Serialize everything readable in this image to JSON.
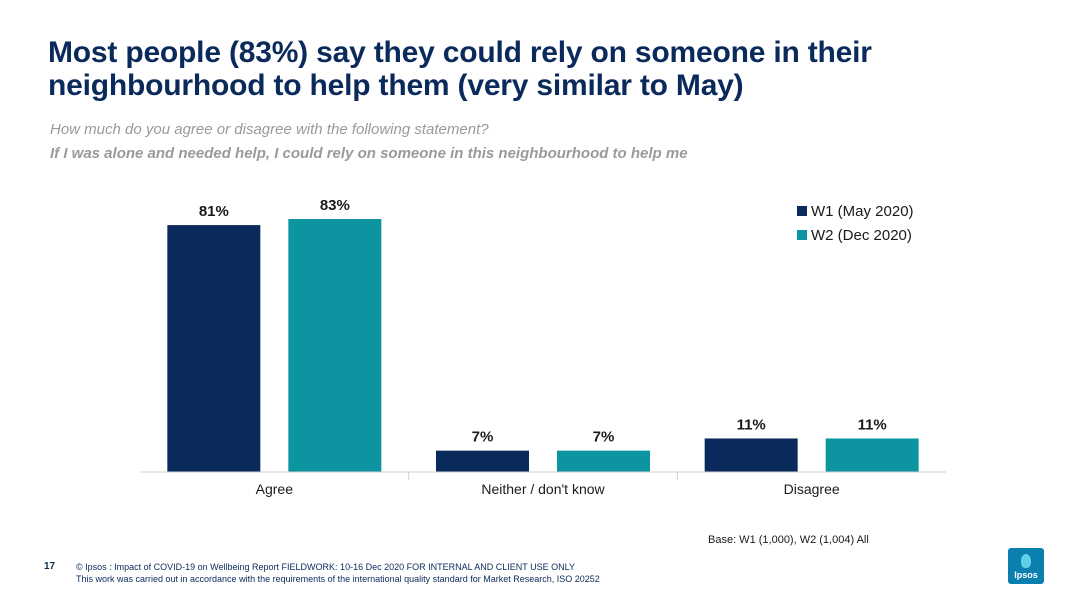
{
  "slide": {
    "title": "Most people (83%) say they could rely on someone in their neighbourhood to help them (very similar to May)",
    "question": "How much do you agree or disagree with the following statement?",
    "statement": "If I was alone and needed help, I could rely on someone in this neighbourhood to help me",
    "base": "Base: W1 (1,000), W2 (1,004) All",
    "page_number": "17",
    "footer_line1": "© Ipsos : Impact of COVID-19 on Wellbeing Report FIELDWORK: 10-16 Dec 2020 FOR INTERNAL AND CLIENT USE ONLY",
    "footer_line2": "This work was carried out in accordance with the requirements of the international quality standard for Market Research, ISO 20252",
    "logo_text": "Ipsos"
  },
  "chart_data": {
    "type": "bar",
    "categories": [
      "Agree",
      "Neither / don't know",
      "Disagree"
    ],
    "series": [
      {
        "name": "W1 (May 2020)",
        "values": [
          81,
          7,
          11
        ],
        "labels": [
          "81%",
          "7%",
          "11%"
        ],
        "color": "#0b2a5c"
      },
      {
        "name": "W2 (Dec 2020)",
        "values": [
          83,
          7,
          11
        ],
        "labels": [
          "83%",
          "7%",
          "11%"
        ],
        "color": "#0c95a0"
      }
    ],
    "ylim": [
      0,
      83
    ],
    "legend_position": "top-right",
    "grid": false
  }
}
